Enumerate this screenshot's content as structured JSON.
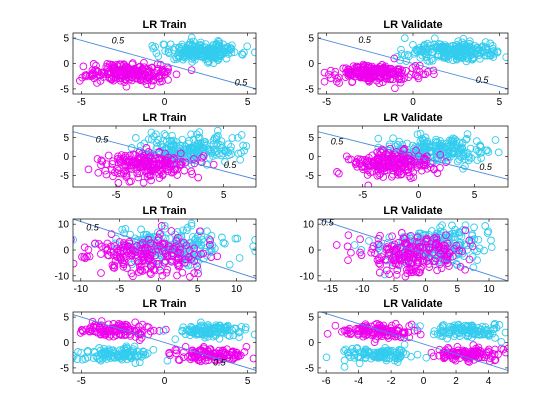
{
  "colors": {
    "class_a": "#33ccee",
    "class_b": "#ee00ee",
    "boundary": "#4b8bdc"
  },
  "chart_data": [
    {
      "type": "scatter",
      "title": "LR Train",
      "xlim": [
        -5.5,
        5.5
      ],
      "ylim": [
        -6,
        6
      ],
      "xticks": [
        -5,
        0,
        5
      ],
      "yticks": [
        -5,
        0,
        5
      ],
      "clusters": [
        {
          "class": "a",
          "cx": 2.3,
          "cy": 2.4,
          "sx": 1.2,
          "sy": 0.9,
          "n": 220
        },
        {
          "class": "b",
          "cx": -2.2,
          "cy": -1.9,
          "sx": 1.2,
          "sy": 0.9,
          "n": 220
        }
      ],
      "boundary": {
        "x1": -5.5,
        "y1": 5.0,
        "x2": 5.5,
        "y2": -5.0
      },
      "contour_label": "0.5",
      "contour_label_pos": [
        [
          -2.8,
          3.9
        ],
        [
          4.6,
          -4.3
        ]
      ]
    },
    {
      "type": "scatter",
      "title": "LR Validate",
      "xlim": [
        -5.5,
        5.5
      ],
      "ylim": [
        -6,
        6
      ],
      "xticks": [
        -5,
        0,
        5
      ],
      "yticks": [
        -5,
        0,
        5
      ],
      "clusters": [
        {
          "class": "a",
          "cx": 2.3,
          "cy": 2.4,
          "sx": 1.2,
          "sy": 0.9,
          "n": 220
        },
        {
          "class": "b",
          "cx": -2.2,
          "cy": -1.9,
          "sx": 1.2,
          "sy": 0.9,
          "n": 220
        }
      ],
      "boundary": {
        "x1": -5.5,
        "y1": 5.0,
        "x2": 5.5,
        "y2": -5.0
      },
      "contour_label": "0.5",
      "contour_label_pos": [
        [
          -2.8,
          4.0
        ],
        [
          4.0,
          -3.8
        ]
      ]
    },
    {
      "type": "scatter",
      "title": "LR Train",
      "xlim": [
        -9,
        8
      ],
      "ylim": [
        -8,
        8
      ],
      "xticks": [
        -5,
        0,
        5
      ],
      "yticks": [
        -5,
        0,
        5
      ],
      "clusters": [
        {
          "class": "a",
          "cx": 1.8,
          "cy": 1.7,
          "sx": 2.2,
          "sy": 1.7,
          "n": 200
        },
        {
          "class": "b",
          "cx": -2.0,
          "cy": -2.0,
          "sx": 2.0,
          "sy": 1.7,
          "n": 200
        }
      ],
      "boundary": {
        "x1": -9,
        "y1": 6.5,
        "x2": 8,
        "y2": -6.0
      },
      "contour_label": "0.5",
      "contour_label_pos": [
        [
          -6.3,
          3.7
        ],
        [
          5.6,
          -3.0
        ]
      ]
    },
    {
      "type": "scatter",
      "title": "LR Validate",
      "xlim": [
        -9,
        8
      ],
      "ylim": [
        -8,
        8
      ],
      "xticks": [
        -5,
        0,
        5
      ],
      "yticks": [
        -5,
        0,
        5
      ],
      "clusters": [
        {
          "class": "a",
          "cx": 1.8,
          "cy": 1.7,
          "sx": 2.2,
          "sy": 1.7,
          "n": 200
        },
        {
          "class": "b",
          "cx": -2.0,
          "cy": -2.0,
          "sx": 2.0,
          "sy": 1.7,
          "n": 200
        }
      ],
      "boundary": {
        "x1": -9,
        "y1": 6.5,
        "x2": 8,
        "y2": -6.0
      },
      "contour_label": "0.5",
      "contour_label_pos": [
        [
          -7.3,
          3.2
        ],
        [
          6.0,
          -3.5
        ]
      ]
    },
    {
      "type": "scatter",
      "title": "LR Train",
      "xlim": [
        -11,
        12.5
      ],
      "ylim": [
        -12,
        12
      ],
      "xticks": [
        -10,
        -5,
        0,
        5,
        10
      ],
      "yticks": [
        -10,
        0,
        10
      ],
      "clusters": [
        {
          "class": "a",
          "cx": 1.5,
          "cy": 1.5,
          "sx": 4.3,
          "sy": 3.8,
          "n": 200
        },
        {
          "class": "b",
          "cx": -2.0,
          "cy": -1.5,
          "sx": 4.0,
          "sy": 3.8,
          "n": 200
        }
      ],
      "boundary": {
        "x1": -11,
        "y1": 12,
        "x2": 12.5,
        "y2": -11
      },
      "contour_label": "0.5",
      "contour_label_pos": [
        [
          -8.5,
          7.5
        ]
      ]
    },
    {
      "type": "scatter",
      "title": "LR Validate",
      "xlim": [
        -17,
        13
      ],
      "ylim": [
        -12,
        12
      ],
      "xticks": [
        -15,
        -10,
        -5,
        0,
        5,
        10
      ],
      "yticks": [
        -10,
        0,
        10
      ],
      "clusters": [
        {
          "class": "a",
          "cx": 1.5,
          "cy": 1.5,
          "sx": 4.3,
          "sy": 3.8,
          "n": 200
        },
        {
          "class": "b",
          "cx": -2.0,
          "cy": -1.5,
          "sx": 4.0,
          "sy": 3.8,
          "n": 200
        }
      ],
      "boundary": {
        "x1": -17,
        "y1": 12,
        "x2": 13,
        "y2": -12
      },
      "contour_label": "0.5",
      "contour_label_pos": [
        [
          -15.5,
          9.5
        ]
      ]
    },
    {
      "type": "scatter",
      "title": "LR Train",
      "xlim": [
        -5.5,
        5.5
      ],
      "ylim": [
        -6,
        6
      ],
      "xticks": [
        -5,
        0,
        5
      ],
      "yticks": [
        -5,
        0,
        5
      ],
      "clusters": [
        {
          "class": "b",
          "cx": -2.8,
          "cy": 2.3,
          "sx": 1.1,
          "sy": 0.7,
          "n": 110
        },
        {
          "class": "b",
          "cx": 2.8,
          "cy": -2.3,
          "sx": 1.1,
          "sy": 0.7,
          "n": 110
        },
        {
          "class": "a",
          "cx": 2.8,
          "cy": 2.3,
          "sx": 1.1,
          "sy": 0.7,
          "n": 110
        },
        {
          "class": "a",
          "cx": -2.8,
          "cy": -2.3,
          "sx": 1.1,
          "sy": 0.7,
          "n": 110
        }
      ],
      "boundary": {
        "x1": -5.5,
        "y1": 5.5,
        "x2": 5.5,
        "y2": -5.5
      },
      "contour_label": "0.5",
      "contour_label_pos": [
        [
          3.3,
          -4.5
        ]
      ]
    },
    {
      "type": "scatter",
      "title": "LR Validate",
      "xlim": [
        -6.5,
        5.2
      ],
      "ylim": [
        -6,
        6
      ],
      "xticks": [
        -6,
        -4,
        -2,
        0,
        2,
        4
      ],
      "yticks": [
        -5,
        0,
        5
      ],
      "clusters": [
        {
          "class": "b",
          "cx": -2.8,
          "cy": 2.3,
          "sx": 1.1,
          "sy": 0.7,
          "n": 110
        },
        {
          "class": "b",
          "cx": 2.8,
          "cy": -2.3,
          "sx": 1.1,
          "sy": 0.7,
          "n": 110
        },
        {
          "class": "a",
          "cx": 2.8,
          "cy": 2.3,
          "sx": 1.1,
          "sy": 0.7,
          "n": 110
        },
        {
          "class": "a",
          "cx": -2.8,
          "cy": -2.3,
          "sx": 1.1,
          "sy": 0.7,
          "n": 110
        }
      ],
      "boundary": {
        "x1": -6.5,
        "y1": 6.2,
        "x2": 5.2,
        "y2": -5.5
      },
      "contour_label": "",
      "contour_label_pos": []
    }
  ]
}
